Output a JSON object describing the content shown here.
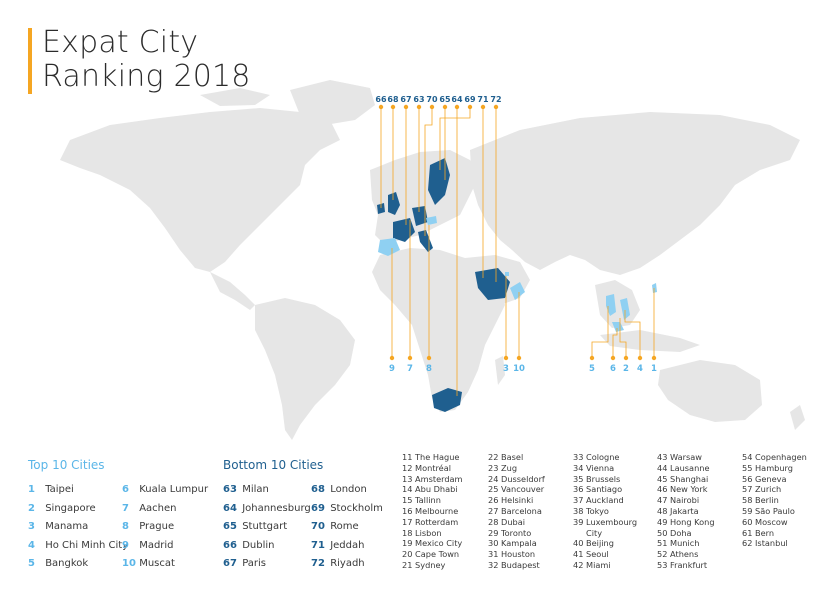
{
  "title": {
    "line1": "Expat City",
    "line2": "Ranking 2018"
  },
  "colors": {
    "accent": "#f5a623",
    "top": "#8fd0f2",
    "bottom": "#1f5f8f",
    "land": "#e6e6e6"
  },
  "map_labels_top": [
    "66",
    "68",
    "67",
    "63",
    "70",
    "65",
    "64",
    "69",
    "71",
    "72"
  ],
  "map_labels_bottom_left": [
    "9",
    "7",
    "8"
  ],
  "map_labels_bottom_mid": [
    "3",
    "10"
  ],
  "map_labels_bottom_right": [
    "5",
    "6",
    "2",
    "4",
    "1"
  ],
  "top10": {
    "heading": "Top 10 Cities",
    "col1": [
      {
        "n": "1",
        "city": "Taipei"
      },
      {
        "n": "2",
        "city": "Singapore"
      },
      {
        "n": "3",
        "city": "Manama"
      },
      {
        "n": "4",
        "city": "Ho Chi Minh City"
      },
      {
        "n": "5",
        "city": "Bangkok"
      }
    ],
    "col2": [
      {
        "n": "6",
        "city": "Kuala Lumpur"
      },
      {
        "n": "7",
        "city": "Aachen"
      },
      {
        "n": "8",
        "city": "Prague"
      },
      {
        "n": "9",
        "city": "Madrid"
      },
      {
        "n": "10",
        "city": "Muscat"
      }
    ]
  },
  "bottom10": {
    "heading": "Bottom 10 Cities",
    "col1": [
      {
        "n": "63",
        "city": "Milan"
      },
      {
        "n": "64",
        "city": "Johannesburg"
      },
      {
        "n": "65",
        "city": "Stuttgart"
      },
      {
        "n": "66",
        "city": "Dublin"
      },
      {
        "n": "67",
        "city": "Paris"
      }
    ],
    "col2": [
      {
        "n": "68",
        "city": "London"
      },
      {
        "n": "69",
        "city": "Stockholm"
      },
      {
        "n": "70",
        "city": "Rome"
      },
      {
        "n": "71",
        "city": "Jeddah"
      },
      {
        "n": "72",
        "city": "Riyadh"
      }
    ]
  },
  "ranks": {
    "col1": [
      "11 The Hague",
      "12 Montréal",
      "13 Amsterdam",
      "14 Abu Dhabi",
      "15 Tallinn",
      "16 Melbourne",
      "17 Rotterdam",
      "18 Lisbon",
      "19 Mexico City",
      "20 Cape Town",
      "21 Sydney"
    ],
    "col2": [
      "22 Basel",
      "23 Zug",
      "24 Dusseldorf",
      "25 Vancouver",
      "26 Helsinki",
      "27 Barcelona",
      "28 Dubai",
      "29 Toronto",
      "30 Kampala",
      "31 Houston",
      "32 Budapest"
    ],
    "col3": [
      "33 Cologne",
      "34 Vienna",
      "35 Brussels",
      "36 Santiago",
      "37 Auckland",
      "38 Tokyo",
      "39 Luxembourg",
      "City",
      "40 Beijing",
      "41 Seoul",
      "42 Miami"
    ],
    "col4": [
      "43 Warsaw",
      "44 Lausanne",
      "45 Shanghai",
      "46 New York",
      "47 Nairobi",
      "48 Jakarta",
      "49 Hong Kong",
      "50 Doha",
      "51 Munich",
      "52 Athens",
      "53 Frankfurt"
    ],
    "col5": [
      "54 Copenhagen",
      "55 Hamburg",
      "56 Geneva",
      "57 Zurich",
      "58 Berlin",
      "59 São Paulo",
      "60 Moscow",
      "61 Bern",
      "62 Istanbul"
    ]
  }
}
